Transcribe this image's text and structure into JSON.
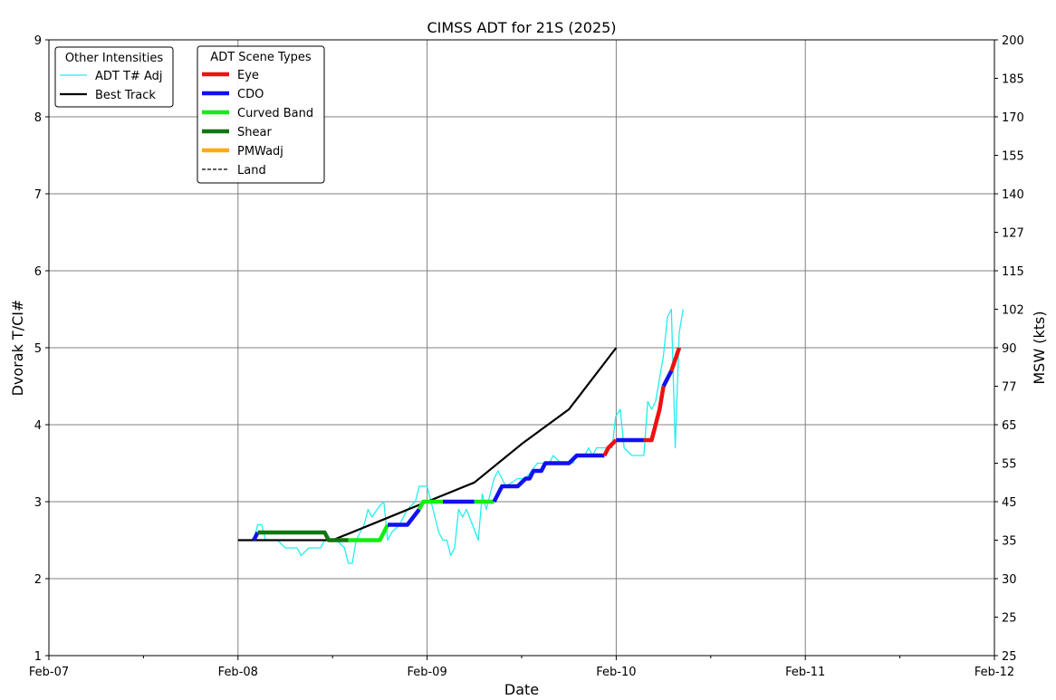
{
  "chart_data": {
    "type": "line",
    "title": "CIMSS ADT for 21S (2025)",
    "xlabel": "Date",
    "ylabel": "Dvorak T/CI#",
    "ylabel_right": "MSW (kts)",
    "xlim": [
      "2025-02-07",
      "2025-02-12"
    ],
    "ylim": [
      1,
      9
    ],
    "grid": true,
    "x_ticks": [
      {
        "x": "2025-02-07",
        "label": "Feb-07"
      },
      {
        "x": "2025-02-08",
        "label": "Feb-08"
      },
      {
        "x": "2025-02-09",
        "label": "Feb-09"
      },
      {
        "x": "2025-02-10",
        "label": "Feb-10"
      },
      {
        "x": "2025-02-11",
        "label": "Feb-11"
      },
      {
        "x": "2025-02-12",
        "label": "Feb-12"
      }
    ],
    "y_ticks": [
      1,
      2,
      3,
      4,
      5,
      6,
      7,
      8,
      9
    ],
    "right_ticks": [
      {
        "t": 1.0,
        "label": "25"
      },
      {
        "t": 1.5,
        "label": "25"
      },
      {
        "t": 2.0,
        "label": "30"
      },
      {
        "t": 2.5,
        "label": "35"
      },
      {
        "t": 3.0,
        "label": "45"
      },
      {
        "t": 3.5,
        "label": "55"
      },
      {
        "t": 4.0,
        "label": "65"
      },
      {
        "t": 4.5,
        "label": "77"
      },
      {
        "t": 5.0,
        "label": "90"
      },
      {
        "t": 5.5,
        "label": "102"
      },
      {
        "t": 6.0,
        "label": "115"
      },
      {
        "t": 6.5,
        "label": "127"
      },
      {
        "t": 7.0,
        "label": "140"
      },
      {
        "t": 7.5,
        "label": "155"
      },
      {
        "t": 8.0,
        "label": "170"
      },
      {
        "t": 8.5,
        "label": "185"
      },
      {
        "t": 9.0,
        "label": "200"
      }
    ],
    "legends": [
      {
        "title": "Other Intensities",
        "position": "top-left",
        "entries": [
          {
            "label": "ADT T# Adj",
            "color": "#22eeee",
            "style": "thin"
          },
          {
            "label": "Best Track",
            "color": "#000000",
            "style": "medium"
          }
        ]
      },
      {
        "title": "ADT Scene Types",
        "position": "top-left",
        "entries": [
          {
            "label": "Eye",
            "color": "#ee1111",
            "style": "thick"
          },
          {
            "label": "CDO",
            "color": "#1111ee",
            "style": "thick"
          },
          {
            "label": "Curved Band",
            "color": "#11ee11",
            "style": "thick"
          },
          {
            "label": "Shear",
            "color": "#117711",
            "style": "thick"
          },
          {
            "label": "PMWadj",
            "color": "#ffaa11",
            "style": "thick"
          },
          {
            "label": "Land",
            "color": "#000000",
            "style": "dashed"
          }
        ]
      }
    ],
    "series": [
      {
        "name": "Best Track",
        "color": "#000000",
        "points": [
          [
            "2025-02-08 00:00",
            2.5
          ],
          [
            "2025-02-08 12:00",
            2.5
          ],
          [
            "2025-02-08 18:00",
            2.75
          ],
          [
            "2025-02-09 00:00",
            3.0
          ],
          [
            "2025-02-09 06:00",
            3.25
          ],
          [
            "2025-02-09 12:00",
            3.75
          ],
          [
            "2025-02-09 18:00",
            4.2
          ],
          [
            "2025-02-10 00:00",
            5.0
          ]
        ]
      },
      {
        "name": "ADT T# Adj",
        "color": "#22eeee",
        "points": [
          [
            "2025-02-08 02:00",
            2.5
          ],
          [
            "2025-02-08 02:30",
            2.7
          ],
          [
            "2025-02-08 03:00",
            2.7
          ],
          [
            "2025-02-08 03:30",
            2.5
          ],
          [
            "2025-02-08 05:00",
            2.5
          ],
          [
            "2025-02-08 06:00",
            2.4
          ],
          [
            "2025-02-08 07:30",
            2.4
          ],
          [
            "2025-02-08 08:00",
            2.3
          ],
          [
            "2025-02-08 09:00",
            2.4
          ],
          [
            "2025-02-08 10:30",
            2.4
          ],
          [
            "2025-02-08 11:00",
            2.5
          ],
          [
            "2025-02-08 12:30",
            2.5
          ],
          [
            "2025-02-08 13:30",
            2.4
          ],
          [
            "2025-02-08 14:00",
            2.2
          ],
          [
            "2025-02-08 14:30",
            2.2
          ],
          [
            "2025-02-08 15:00",
            2.5
          ],
          [
            "2025-02-08 16:00",
            2.7
          ],
          [
            "2025-02-08 16:30",
            2.9
          ],
          [
            "2025-02-08 17:00",
            2.8
          ],
          [
            "2025-02-08 18:00",
            2.95
          ],
          [
            "2025-02-08 18:30",
            3.0
          ],
          [
            "2025-02-08 19:00",
            2.5
          ],
          [
            "2025-02-08 19:30",
            2.6
          ],
          [
            "2025-02-08 20:30",
            2.7
          ],
          [
            "2025-02-08 21:30",
            2.9
          ],
          [
            "2025-02-08 22:30",
            3.0
          ],
          [
            "2025-02-08 23:00",
            3.2
          ],
          [
            "2025-02-09 00:00",
            3.2
          ],
          [
            "2025-02-09 00:30",
            3.0
          ],
          [
            "2025-02-09 01:30",
            2.6
          ],
          [
            "2025-02-09 02:00",
            2.5
          ],
          [
            "2025-02-09 02:30",
            2.5
          ],
          [
            "2025-02-09 03:00",
            2.3
          ],
          [
            "2025-02-09 03:30",
            2.4
          ],
          [
            "2025-02-09 04:00",
            2.9
          ],
          [
            "2025-02-09 04:30",
            2.8
          ],
          [
            "2025-02-09 05:00",
            2.9
          ],
          [
            "2025-02-09 06:30",
            2.5
          ],
          [
            "2025-02-09 07:00",
            3.1
          ],
          [
            "2025-02-09 07:30",
            2.9
          ],
          [
            "2025-02-09 08:30",
            3.3
          ],
          [
            "2025-02-09 09:00",
            3.4
          ],
          [
            "2025-02-09 10:00",
            3.2
          ],
          [
            "2025-02-09 11:30",
            3.3
          ],
          [
            "2025-02-09 12:30",
            3.3
          ],
          [
            "2025-02-09 14:00",
            3.5
          ],
          [
            "2025-02-09 15:30",
            3.5
          ],
          [
            "2025-02-09 16:00",
            3.6
          ],
          [
            "2025-02-09 17:00",
            3.5
          ],
          [
            "2025-02-09 18:30",
            3.5
          ],
          [
            "2025-02-09 19:00",
            3.6
          ],
          [
            "2025-02-09 20:00",
            3.6
          ],
          [
            "2025-02-09 20:30",
            3.7
          ],
          [
            "2025-02-09 21:00",
            3.6
          ],
          [
            "2025-02-09 21:30",
            3.7
          ],
          [
            "2025-02-09 22:00",
            3.7
          ],
          [
            "2025-02-09 23:30",
            3.7
          ],
          [
            "2025-02-09 23:55",
            4.1
          ],
          [
            "2025-02-10 00:30",
            4.2
          ],
          [
            "2025-02-10 01:00",
            3.7
          ],
          [
            "2025-02-10 02:00",
            3.6
          ],
          [
            "2025-02-10 03:30",
            3.6
          ],
          [
            "2025-02-10 04:00",
            4.3
          ],
          [
            "2025-02-10 04:30",
            4.2
          ],
          [
            "2025-02-10 05:00",
            4.3
          ],
          [
            "2025-02-10 06:00",
            4.9
          ],
          [
            "2025-02-10 06:30",
            5.4
          ],
          [
            "2025-02-10 07:00",
            5.5
          ],
          [
            "2025-02-10 07:30",
            3.7
          ],
          [
            "2025-02-10 08:00",
            5.2
          ],
          [
            "2025-02-10 08:30",
            5.5
          ]
        ]
      }
    ],
    "scene_segments": [
      {
        "scene": "CDO",
        "color": "#1111ee",
        "points": [
          [
            "2025-02-08 02:00",
            2.5
          ],
          [
            "2025-02-08 02:30",
            2.6
          ]
        ]
      },
      {
        "scene": "Shear",
        "color": "#117711",
        "points": [
          [
            "2025-02-08 02:30",
            2.6
          ],
          [
            "2025-02-08 11:00",
            2.6
          ],
          [
            "2025-02-08 11:30",
            2.5
          ],
          [
            "2025-02-08 14:00",
            2.5
          ]
        ]
      },
      {
        "scene": "Curved Band",
        "color": "#11ee11",
        "points": [
          [
            "2025-02-08 14:00",
            2.5
          ],
          [
            "2025-02-08 18:00",
            2.5
          ],
          [
            "2025-02-08 19:00",
            2.7
          ]
        ]
      },
      {
        "scene": "CDO",
        "color": "#1111ee",
        "points": [
          [
            "2025-02-08 19:00",
            2.7
          ],
          [
            "2025-02-08 21:30",
            2.7
          ],
          [
            "2025-02-08 23:00",
            2.9
          ]
        ]
      },
      {
        "scene": "Curved Band",
        "color": "#11ee11",
        "points": [
          [
            "2025-02-08 23:00",
            2.9
          ],
          [
            "2025-02-08 23:30",
            3.0
          ],
          [
            "2025-02-09 02:00",
            3.0
          ]
        ]
      },
      {
        "scene": "CDO",
        "color": "#1111ee",
        "points": [
          [
            "2025-02-09 02:00",
            3.0
          ],
          [
            "2025-02-09 06:00",
            3.0
          ]
        ]
      },
      {
        "scene": "Curved Band",
        "color": "#11ee11",
        "points": [
          [
            "2025-02-09 06:00",
            3.0
          ],
          [
            "2025-02-09 08:30",
            3.0
          ]
        ]
      },
      {
        "scene": "CDO",
        "color": "#1111ee",
        "points": [
          [
            "2025-02-09 08:30",
            3.0
          ],
          [
            "2025-02-09 09:30",
            3.2
          ],
          [
            "2025-02-09 11:30",
            3.2
          ],
          [
            "2025-02-09 12:30",
            3.3
          ],
          [
            "2025-02-09 13:00",
            3.3
          ],
          [
            "2025-02-09 13:30",
            3.4
          ],
          [
            "2025-02-09 14:30",
            3.4
          ],
          [
            "2025-02-09 15:00",
            3.5
          ],
          [
            "2025-02-09 18:00",
            3.5
          ],
          [
            "2025-02-09 19:00",
            3.6
          ],
          [
            "2025-02-09 22:30",
            3.6
          ]
        ]
      },
      {
        "scene": "Eye",
        "color": "#ee1111",
        "points": [
          [
            "2025-02-09 22:30",
            3.6
          ],
          [
            "2025-02-09 23:00",
            3.7
          ],
          [
            "2025-02-09 23:59",
            3.8
          ]
        ]
      },
      {
        "scene": "CDO",
        "color": "#1111ee",
        "points": [
          [
            "2025-02-09 23:59",
            3.8
          ],
          [
            "2025-02-10 03:30",
            3.8
          ]
        ]
      },
      {
        "scene": "Eye",
        "color": "#ee1111",
        "points": [
          [
            "2025-02-10 03:30",
            3.8
          ],
          [
            "2025-02-10 04:30",
            3.8
          ],
          [
            "2025-02-10 05:30",
            4.2
          ],
          [
            "2025-02-10 06:00",
            4.5
          ]
        ]
      },
      {
        "scene": "CDO",
        "color": "#1111ee",
        "points": [
          [
            "2025-02-10 06:00",
            4.5
          ],
          [
            "2025-02-10 07:00",
            4.7
          ]
        ]
      },
      {
        "scene": "Eye",
        "color": "#ee1111",
        "points": [
          [
            "2025-02-10 07:00",
            4.7
          ],
          [
            "2025-02-10 08:00",
            5.0
          ]
        ]
      }
    ]
  }
}
